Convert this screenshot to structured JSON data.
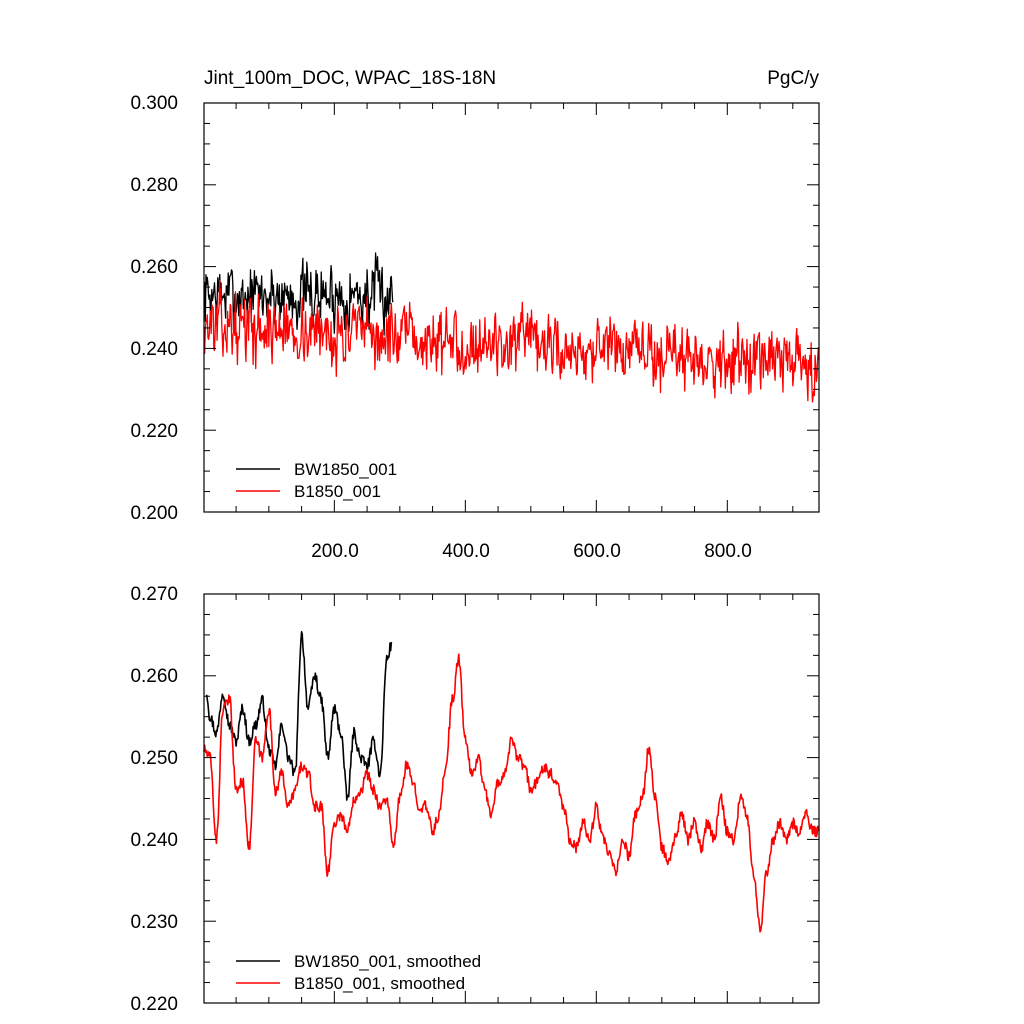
{
  "chart_data": [
    {
      "type": "line",
      "title_left": "Jint_100m_DOC, WPAC_18S-18N",
      "title_right": "PgC/y",
      "xlim": [
        1,
        940
      ],
      "ylim": [
        0.2,
        0.3
      ],
      "yticks": [
        "0.300",
        "0.280",
        "0.260",
        "0.240",
        "0.220",
        "0.200"
      ],
      "ytick_values": [
        0.3,
        0.28,
        0.26,
        0.24,
        0.22,
        0.2
      ],
      "xticks": [
        "200.0",
        "400.0",
        "600.0",
        "800.0"
      ],
      "xtick_values": [
        200,
        400,
        600,
        800
      ],
      "series": [
        {
          "name": "BW1850_001",
          "color": "#000000",
          "x_range": [
            1,
            290
          ],
          "mean": 0.253,
          "amp": 0.013,
          "seed": 7,
          "smoothed": false
        },
        {
          "name": "B1850_001",
          "color": "#ff0000",
          "x_range": [
            1,
            940
          ],
          "mean": 0.246,
          "amp": 0.013,
          "seed": 13,
          "smoothed": false
        }
      ],
      "legend": [
        "BW1850_001",
        "B1850_001"
      ]
    },
    {
      "type": "line",
      "xlim": [
        1,
        940
      ],
      "ylim": [
        0.22,
        0.27
      ],
      "yticks": [
        "0.270",
        "0.260",
        "0.250",
        "0.240",
        "0.230",
        "0.220"
      ],
      "ytick_values": [
        0.27,
        0.26,
        0.25,
        0.24,
        0.23,
        0.22
      ],
      "xtick_values": [
        200,
        400,
        600,
        800
      ],
      "series": [
        {
          "name": "BW1850_001, smoothed",
          "color": "#000000",
          "x_range": [
            1,
            290
          ],
          "smoothed": true,
          "anchors": [
            [
              5,
              0.258
            ],
            [
              10,
              0.255
            ],
            [
              20,
              0.253
            ],
            [
              30,
              0.258
            ],
            [
              40,
              0.254
            ],
            [
              50,
              0.252
            ],
            [
              60,
              0.256
            ],
            [
              70,
              0.252
            ],
            [
              80,
              0.254
            ],
            [
              90,
              0.257
            ],
            [
              100,
              0.251
            ],
            [
              110,
              0.249
            ],
            [
              120,
              0.254
            ],
            [
              130,
              0.25
            ],
            [
              140,
              0.248
            ],
            [
              150,
              0.265
            ],
            [
              160,
              0.256
            ],
            [
              170,
              0.26
            ],
            [
              180,
              0.257
            ],
            [
              190,
              0.25
            ],
            [
              200,
              0.256
            ],
            [
              210,
              0.253
            ],
            [
              220,
              0.245
            ],
            [
              230,
              0.253
            ],
            [
              240,
              0.25
            ],
            [
              250,
              0.249
            ],
            [
              260,
              0.252
            ],
            [
              270,
              0.248
            ],
            [
              280,
              0.262
            ],
            [
              288,
              0.264
            ]
          ]
        },
        {
          "name": "B1850_001, smoothed",
          "color": "#ff0000",
          "x_range": [
            1,
            940
          ],
          "smoothed": true,
          "anchors": [
            [
              1,
              0.251
            ],
            [
              10,
              0.25
            ],
            [
              20,
              0.24
            ],
            [
              30,
              0.256
            ],
            [
              40,
              0.257
            ],
            [
              50,
              0.246
            ],
            [
              60,
              0.247
            ],
            [
              70,
              0.239
            ],
            [
              80,
              0.252
            ],
            [
              90,
              0.25
            ],
            [
              100,
              0.256
            ],
            [
              110,
              0.246
            ],
            [
              120,
              0.248
            ],
            [
              130,
              0.244
            ],
            [
              140,
              0.246
            ],
            [
              150,
              0.249
            ],
            [
              160,
              0.248
            ],
            [
              170,
              0.244
            ],
            [
              180,
              0.244
            ],
            [
              190,
              0.236
            ],
            [
              200,
              0.242
            ],
            [
              210,
              0.243
            ],
            [
              220,
              0.241
            ],
            [
              230,
              0.245
            ],
            [
              240,
              0.246
            ],
            [
              250,
              0.248
            ],
            [
              260,
              0.246
            ],
            [
              270,
              0.244
            ],
            [
              280,
              0.245
            ],
            [
              290,
              0.239
            ],
            [
              300,
              0.245
            ],
            [
              310,
              0.249
            ],
            [
              320,
              0.247
            ],
            [
              330,
              0.244
            ],
            [
              340,
              0.244
            ],
            [
              350,
              0.241
            ],
            [
              360,
              0.243
            ],
            [
              370,
              0.249
            ],
            [
              380,
              0.257
            ],
            [
              390,
              0.262
            ],
            [
              400,
              0.252
            ],
            [
              410,
              0.248
            ],
            [
              420,
              0.25
            ],
            [
              430,
              0.246
            ],
            [
              440,
              0.243
            ],
            [
              450,
              0.247
            ],
            [
              460,
              0.248
            ],
            [
              470,
              0.252
            ],
            [
              480,
              0.25
            ],
            [
              490,
              0.249
            ],
            [
              500,
              0.246
            ],
            [
              510,
              0.247
            ],
            [
              520,
              0.249
            ],
            [
              530,
              0.248
            ],
            [
              540,
              0.247
            ],
            [
              550,
              0.244
            ],
            [
              560,
              0.24
            ],
            [
              570,
              0.239
            ],
            [
              580,
              0.242
            ],
            [
              590,
              0.24
            ],
            [
              600,
              0.244
            ],
            [
              610,
              0.24
            ],
            [
              620,
              0.238
            ],
            [
              630,
              0.236
            ],
            [
              640,
              0.24
            ],
            [
              650,
              0.238
            ],
            [
              660,
              0.243
            ],
            [
              670,
              0.245
            ],
            [
              680,
              0.251
            ],
            [
              690,
              0.245
            ],
            [
              700,
              0.239
            ],
            [
              710,
              0.237
            ],
            [
              720,
              0.24
            ],
            [
              730,
              0.243
            ],
            [
              740,
              0.24
            ],
            [
              750,
              0.242
            ],
            [
              760,
              0.239
            ],
            [
              770,
              0.242
            ],
            [
              780,
              0.24
            ],
            [
              790,
              0.245
            ],
            [
              800,
              0.241
            ],
            [
              810,
              0.24
            ],
            [
              820,
              0.245
            ],
            [
              830,
              0.243
            ],
            [
              840,
              0.236
            ],
            [
              850,
              0.229
            ],
            [
              860,
              0.236
            ],
            [
              870,
              0.24
            ],
            [
              880,
              0.242
            ],
            [
              890,
              0.24
            ],
            [
              900,
              0.242
            ],
            [
              910,
              0.241
            ],
            [
              920,
              0.243
            ],
            [
              930,
              0.241
            ],
            [
              940,
              0.241
            ]
          ]
        }
      ],
      "legend": [
        "BW1850_001, smoothed",
        "B1850_001, smoothed"
      ]
    }
  ]
}
